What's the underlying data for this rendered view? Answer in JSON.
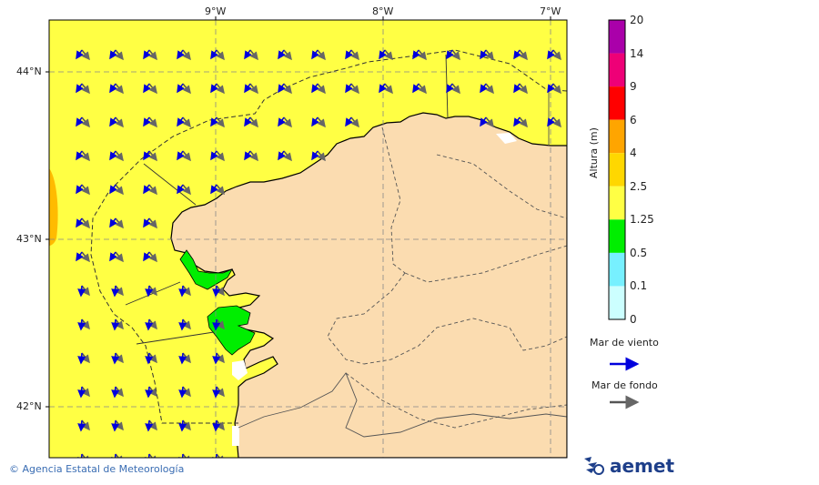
{
  "map": {
    "lon_labels": [
      "9°W",
      "8°W",
      "7°W"
    ],
    "lat_labels": [
      "44°N",
      "43°N",
      "42°N"
    ],
    "colors": {
      "sea_yellow": "#ffff44",
      "land": "#fbdcb0",
      "green": "#00ee00",
      "orange": "#ffbb00",
      "white": "#ffffff",
      "grid": "#888888"
    }
  },
  "legend": {
    "title": "Altura (m)",
    "levels": [
      "20",
      "14",
      "9",
      "6",
      "4",
      "2.5",
      "1.25",
      "0.5",
      "0.1",
      "0"
    ],
    "colors": [
      "#aa00aa",
      "#ee0077",
      "#ff0000",
      "#ffa500",
      "#ffd700",
      "#ffff44",
      "#00ee00",
      "#77f0ff",
      "#ccffff"
    ],
    "wind_sea_label": "Mar de viento",
    "wind_sea_color": "#0000dd",
    "swell_label": "Mar de fondo",
    "swell_color": "#555555"
  },
  "footer": {
    "credit": "© Agencia Estatal de Meteorología",
    "brand": "aemet"
  }
}
